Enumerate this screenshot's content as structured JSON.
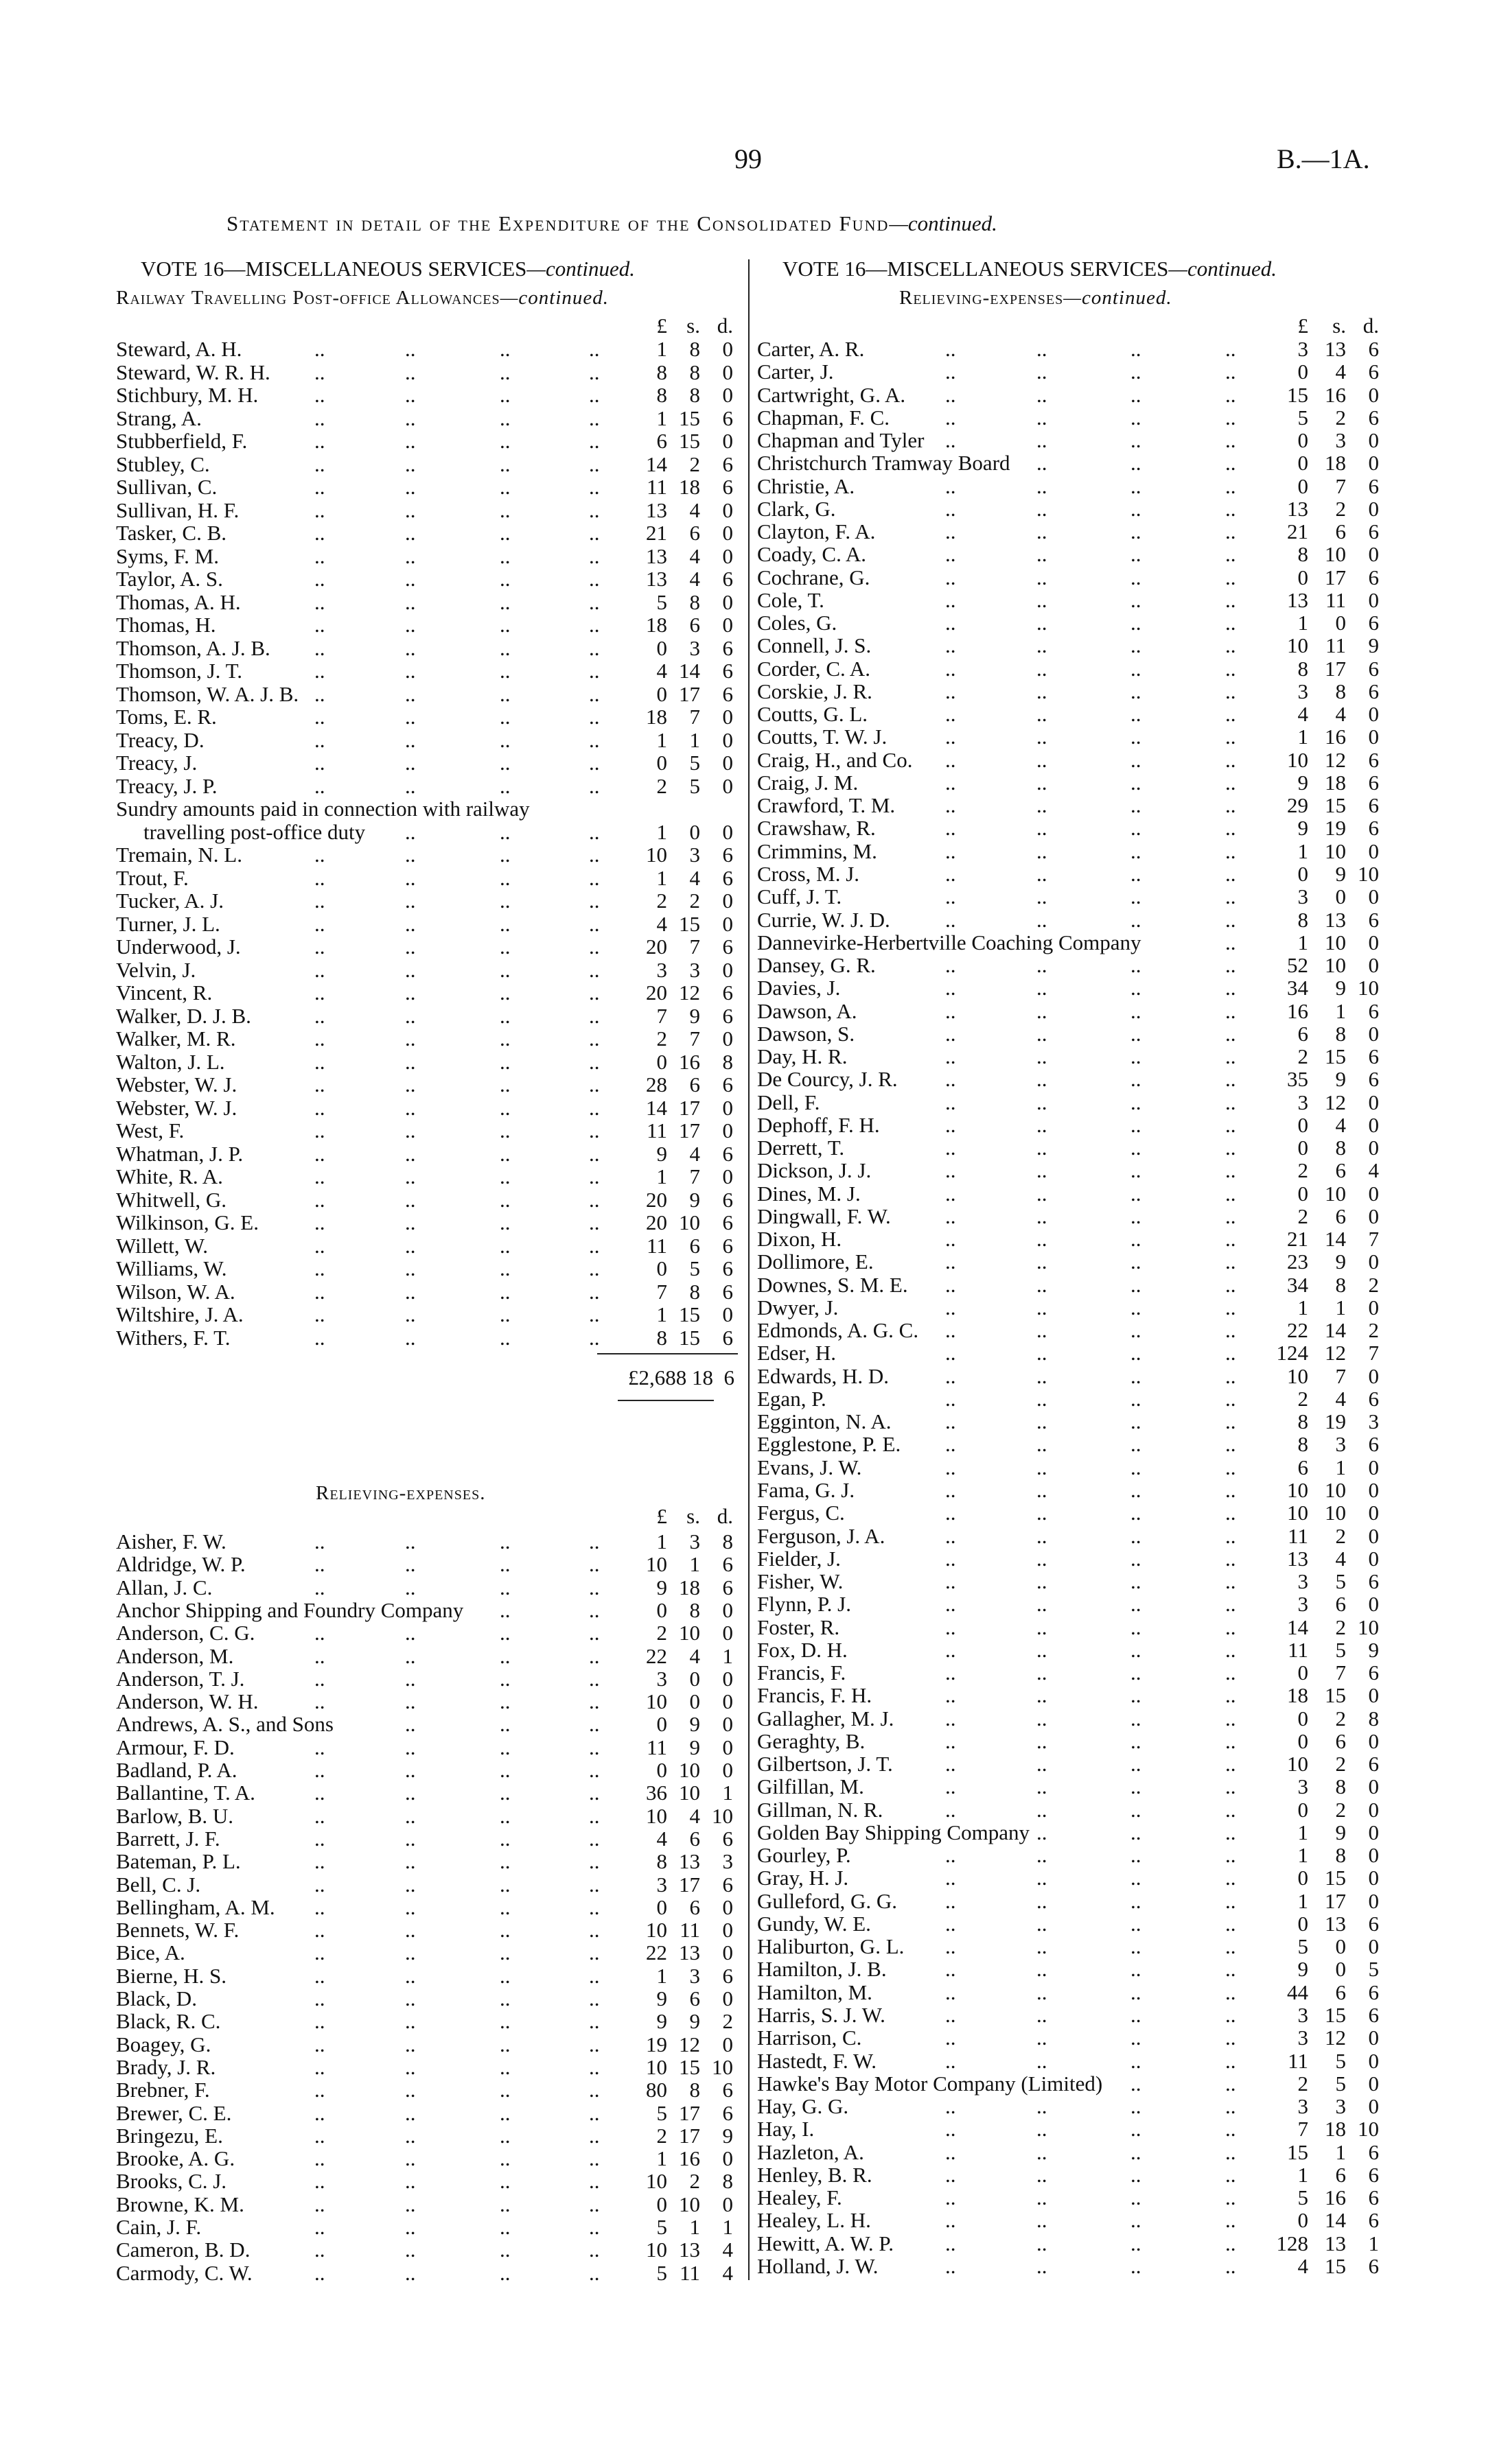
{
  "page_number": "99",
  "page_code": "B.—1A.",
  "title": "Statement in detail of the Expenditure of the Consolidated Fund",
  "title_suffix": "—continued.",
  "left": {
    "vote_heading": "VOTE 16—MISCELLANEOUS SERVICES",
    "vote_suffix": "—continued.",
    "section_heading": "Railway Travelling Post-office Allowances",
    "section_suffix": "—continued.",
    "currency_header": {
      "pounds": "£",
      "shillings": "s.",
      "pence": "d."
    },
    "rows": [
      [
        "Steward, A. H.",
        "1",
        "8",
        "0"
      ],
      [
        "Steward, W. R. H.",
        "8",
        "8",
        "0"
      ],
      [
        "Stichbury, M. H.",
        "8",
        "8",
        "0"
      ],
      [
        "Strang, A.",
        "1",
        "15",
        "6"
      ],
      [
        "Stubberfield, F.",
        "6",
        "15",
        "0"
      ],
      [
        "Stubley, C.",
        "14",
        "2",
        "6"
      ],
      [
        "Sullivan, C.",
        "11",
        "18",
        "6"
      ],
      [
        "Sullivan, H. F.",
        "13",
        "4",
        "0"
      ],
      [
        "Tasker, C. B.",
        "21",
        "6",
        "0"
      ],
      [
        "Syms, F. M.",
        "13",
        "4",
        "0"
      ],
      [
        "Taylor, A. S.",
        "13",
        "4",
        "6"
      ],
      [
        "Thomas, A. H.",
        "5",
        "8",
        "0"
      ],
      [
        "Thomas, H.",
        "18",
        "6",
        "0"
      ],
      [
        "Thomson, A. J. B.",
        "0",
        "3",
        "6"
      ],
      [
        "Thomson, J. T.",
        "4",
        "14",
        "6"
      ],
      [
        "Thomson, W. A. J. B.",
        "0",
        "17",
        "6"
      ],
      [
        "Toms, E. R.",
        "18",
        "7",
        "0"
      ],
      [
        "Treacy, D.",
        "1",
        "1",
        "0"
      ],
      [
        "Treacy, J.",
        "0",
        "5",
        "0"
      ],
      [
        "Treacy, J. P.",
        "2",
        "5",
        "0"
      ],
      [
        "Sundry amounts paid in connection with railway",
        "",
        "",
        ""
      ],
      [
        "travelling post-office duty",
        "1",
        "0",
        "0",
        "cont"
      ],
      [
        "Tremain, N. L.",
        "10",
        "3",
        "6"
      ],
      [
        "Trout, F.",
        "1",
        "4",
        "6"
      ],
      [
        "Tucker, A. J.",
        "2",
        "2",
        "0"
      ],
      [
        "Turner, J. L.",
        "4",
        "15",
        "0"
      ],
      [
        "Underwood, J.",
        "20",
        "7",
        "6"
      ],
      [
        "Velvin, J.",
        "3",
        "3",
        "0"
      ],
      [
        "Vincent, R.",
        "20",
        "12",
        "6"
      ],
      [
        "Walker, D. J. B.",
        "7",
        "9",
        "6"
      ],
      [
        "Walker, M. R.",
        "2",
        "7",
        "0"
      ],
      [
        "Walton, J. L.",
        "0",
        "16",
        "8"
      ],
      [
        "Webster, W. J.",
        "28",
        "6",
        "6"
      ],
      [
        "Webster, W. J.",
        "14",
        "17",
        "0"
      ],
      [
        "West, F.",
        "11",
        "17",
        "0"
      ],
      [
        "Whatman, J. P.",
        "9",
        "4",
        "6"
      ],
      [
        "White, R. A.",
        "1",
        "7",
        "0"
      ],
      [
        "Whitwell, G.",
        "20",
        "9",
        "6"
      ],
      [
        "Wilkinson, G. E.",
        "20",
        "10",
        "6"
      ],
      [
        "Willett, W.",
        "11",
        "6",
        "6"
      ],
      [
        "Williams, W.",
        "0",
        "5",
        "6"
      ],
      [
        "Wilson, W. A.",
        "7",
        "8",
        "6"
      ],
      [
        "Wiltshire, J. A.",
        "1",
        "15",
        "0"
      ],
      [
        "Withers, F. T.",
        "8",
        "15",
        "6"
      ]
    ],
    "total": "£2,688 18  6",
    "relieving_heading": "Relieving-expenses.",
    "relieving_rows": [
      [
        "Aisher, F. W.",
        "1",
        "3",
        "8"
      ],
      [
        "Aldridge, W. P.",
        "10",
        "1",
        "6"
      ],
      [
        "Allan, J. C.",
        "9",
        "18",
        "6"
      ],
      [
        "Anchor Shipping and Foundry Company",
        "0",
        "8",
        "0"
      ],
      [
        "Anderson, C. G.",
        "2",
        "10",
        "0"
      ],
      [
        "Anderson, M.",
        "22",
        "4",
        "1"
      ],
      [
        "Anderson, T. J.",
        "3",
        "0",
        "0"
      ],
      [
        "Anderson, W. H.",
        "10",
        "0",
        "0"
      ],
      [
        "Andrews, A. S., and Sons",
        "0",
        "9",
        "0"
      ],
      [
        "Armour, F. D.",
        "11",
        "9",
        "0"
      ],
      [
        "Badland, P. A.",
        "0",
        "10",
        "0"
      ],
      [
        "Ballantine, T. A.",
        "36",
        "10",
        "1"
      ],
      [
        "Barlow, B. U.",
        "10",
        "4",
        "10"
      ],
      [
        "Barrett, J. F.",
        "4",
        "6",
        "6"
      ],
      [
        "Bateman, P. L.",
        "8",
        "13",
        "3"
      ],
      [
        "Bell, C. J.",
        "3",
        "17",
        "6"
      ],
      [
        "Bellingham, A. M.",
        "0",
        "6",
        "0"
      ],
      [
        "Bennets, W. F.",
        "10",
        "11",
        "0"
      ],
      [
        "Bice, A.",
        "22",
        "13",
        "0"
      ],
      [
        "Bierne, H. S.",
        "1",
        "3",
        "6"
      ],
      [
        "Black, D.",
        "9",
        "6",
        "0"
      ],
      [
        "Black, R. C.",
        "9",
        "9",
        "2"
      ],
      [
        "Boagey, G.",
        "19",
        "12",
        "0"
      ],
      [
        "Brady, J. R.",
        "10",
        "15",
        "10"
      ],
      [
        "Brebner, F.",
        "80",
        "8",
        "6"
      ],
      [
        "Brewer, C. E.",
        "5",
        "17",
        "6"
      ],
      [
        "Bringezu, E.",
        "2",
        "17",
        "9"
      ],
      [
        "Brooke, A. G.",
        "1",
        "16",
        "0"
      ],
      [
        "Brooks, C. J.",
        "10",
        "2",
        "8"
      ],
      [
        "Browne, K. M.",
        "0",
        "10",
        "0"
      ],
      [
        "Cain, J. F.",
        "5",
        "1",
        "1"
      ],
      [
        "Cameron, B. D.",
        "10",
        "13",
        "4"
      ],
      [
        "Carmody, C. W.",
        "5",
        "11",
        "4"
      ]
    ]
  },
  "right": {
    "vote_heading": "VOTE 16—MISCELLANEOUS SERVICES",
    "vote_suffix": "—continued.",
    "section_heading": "Relieving-expenses",
    "section_suffix": "—continued.",
    "currency_header": {
      "pounds": "£",
      "shillings": "s.",
      "pence": "d."
    },
    "rows": [
      [
        "Carter, A. R.",
        "3",
        "13",
        "6"
      ],
      [
        "Carter, J.",
        "0",
        "4",
        "6"
      ],
      [
        "Cartwright, G. A.",
        "15",
        "16",
        "0"
      ],
      [
        "Chapman, F. C.",
        "5",
        "2",
        "6"
      ],
      [
        "Chapman and Tyler",
        "0",
        "3",
        "0"
      ],
      [
        "Christchurch Tramway Board",
        "0",
        "18",
        "0"
      ],
      [
        "Christie, A.",
        "0",
        "7",
        "6"
      ],
      [
        "Clark, G.",
        "13",
        "2",
        "0"
      ],
      [
        "Clayton, F. A.",
        "21",
        "6",
        "6"
      ],
      [
        "Coady, C. A.",
        "8",
        "10",
        "0"
      ],
      [
        "Cochrane, G.",
        "0",
        "17",
        "6"
      ],
      [
        "Cole, T.",
        "13",
        "11",
        "0"
      ],
      [
        "Coles, G.",
        "1",
        "0",
        "6"
      ],
      [
        "Connell, J. S.",
        "10",
        "11",
        "9"
      ],
      [
        "Corder, C. A.",
        "8",
        "17",
        "6"
      ],
      [
        "Corskie, J. R.",
        "3",
        "8",
        "6"
      ],
      [
        "Coutts, G. L.",
        "4",
        "4",
        "0"
      ],
      [
        "Coutts, T. W. J.",
        "1",
        "16",
        "0"
      ],
      [
        "Craig, H., and Co.",
        "10",
        "12",
        "6"
      ],
      [
        "Craig, J. M.",
        "9",
        "18",
        "6"
      ],
      [
        "Crawford, T. M.",
        "29",
        "15",
        "6"
      ],
      [
        "Crawshaw, R.",
        "9",
        "19",
        "6"
      ],
      [
        "Crimmins, M.",
        "1",
        "10",
        "0"
      ],
      [
        "Cross, M. J.",
        "0",
        "9",
        "10"
      ],
      [
        "Cuff, J. T.",
        "3",
        "0",
        "0"
      ],
      [
        "Currie, W. J. D.",
        "8",
        "13",
        "6"
      ],
      [
        "Dannevirke-Herbertville Coaching Company",
        "1",
        "10",
        "0"
      ],
      [
        "Dansey, G. R.",
        "52",
        "10",
        "0"
      ],
      [
        "Davies, J.",
        "34",
        "9",
        "10"
      ],
      [
        "Dawson, A.",
        "16",
        "1",
        "6"
      ],
      [
        "Dawson, S.",
        "6",
        "8",
        "0"
      ],
      [
        "Day, H. R.",
        "2",
        "15",
        "6"
      ],
      [
        "De Courcy, J. R.",
        "35",
        "9",
        "6"
      ],
      [
        "Dell, F.",
        "3",
        "12",
        "0"
      ],
      [
        "Dephoff, F. H.",
        "0",
        "4",
        "0"
      ],
      [
        "Derrett, T.",
        "0",
        "8",
        "0"
      ],
      [
        "Dickson, J. J.",
        "2",
        "6",
        "4"
      ],
      [
        "Dines, M. J.",
        "0",
        "10",
        "0"
      ],
      [
        "Dingwall, F. W.",
        "2",
        "6",
        "0"
      ],
      [
        "Dixon, H.",
        "21",
        "14",
        "7"
      ],
      [
        "Dollimore, E.",
        "23",
        "9",
        "0"
      ],
      [
        "Downes, S. M. E.",
        "34",
        "8",
        "2"
      ],
      [
        "Dwyer, J.",
        "1",
        "1",
        "0"
      ],
      [
        "Edmonds, A. G. C.",
        "22",
        "14",
        "2"
      ],
      [
        "Edser, H.",
        "124",
        "12",
        "7"
      ],
      [
        "Edwards, H. D.",
        "10",
        "7",
        "0"
      ],
      [
        "Egan, P.",
        "2",
        "4",
        "6"
      ],
      [
        "Egginton, N. A.",
        "8",
        "19",
        "3"
      ],
      [
        "Egglestone, P. E.",
        "8",
        "3",
        "6"
      ],
      [
        "Evans, J. W.",
        "6",
        "1",
        "0"
      ],
      [
        "Fama, G. J.",
        "10",
        "10",
        "0"
      ],
      [
        "Fergus, C.",
        "10",
        "10",
        "0"
      ],
      [
        "Ferguson, J. A.",
        "11",
        "2",
        "0"
      ],
      [
        "Fielder, J.",
        "13",
        "4",
        "0"
      ],
      [
        "Fisher, W.",
        "3",
        "5",
        "6"
      ],
      [
        "Flynn, P. J.",
        "3",
        "6",
        "0"
      ],
      [
        "Foster, R.",
        "14",
        "2",
        "10"
      ],
      [
        "Fox, D. H.",
        "11",
        "5",
        "9"
      ],
      [
        "Francis, F.",
        "0",
        "7",
        "6"
      ],
      [
        "Francis, F. H.",
        "18",
        "15",
        "0"
      ],
      [
        "Gallagher, M. J.",
        "0",
        "2",
        "8"
      ],
      [
        "Geraghty, B.",
        "0",
        "6",
        "0"
      ],
      [
        "Gilbertson, J. T.",
        "10",
        "2",
        "6"
      ],
      [
        "Gilfillan, M.",
        "3",
        "8",
        "0"
      ],
      [
        "Gillman, N. R.",
        "0",
        "2",
        "0"
      ],
      [
        "Golden Bay Shipping Company",
        "1",
        "9",
        "0"
      ],
      [
        "Gourley, P.",
        "1",
        "8",
        "0"
      ],
      [
        "Gray, H. J.",
        "0",
        "15",
        "0"
      ],
      [
        "Gulleford, G. G.",
        "1",
        "17",
        "0"
      ],
      [
        "Gundy, W. E.",
        "0",
        "13",
        "6"
      ],
      [
        "Haliburton, G. L.",
        "5",
        "0",
        "0"
      ],
      [
        "Hamilton, J. B.",
        "9",
        "0",
        "5"
      ],
      [
        "Hamilton, M.",
        "44",
        "6",
        "6"
      ],
      [
        "Harris, S. J. W.",
        "3",
        "15",
        "6"
      ],
      [
        "Harrison, C.",
        "3",
        "12",
        "0"
      ],
      [
        "Hastedt, F. W.",
        "11",
        "5",
        "0"
      ],
      [
        "Hawke's Bay Motor Company (Limited)",
        "2",
        "5",
        "0"
      ],
      [
        "Hay, G. G.",
        "3",
        "3",
        "0"
      ],
      [
        "Hay, I.",
        "7",
        "18",
        "10"
      ],
      [
        "Hazleton, A.",
        "15",
        "1",
        "6"
      ],
      [
        "Henley, B. R.",
        "1",
        "6",
        "6"
      ],
      [
        "Healey, F.",
        "5",
        "16",
        "6"
      ],
      [
        "Healey, L. H.",
        "0",
        "14",
        "6"
      ],
      [
        "Hewitt, A. W. P.",
        "128",
        "13",
        "1"
      ],
      [
        "Holland, J. W.",
        "4",
        "15",
        "6"
      ]
    ]
  }
}
